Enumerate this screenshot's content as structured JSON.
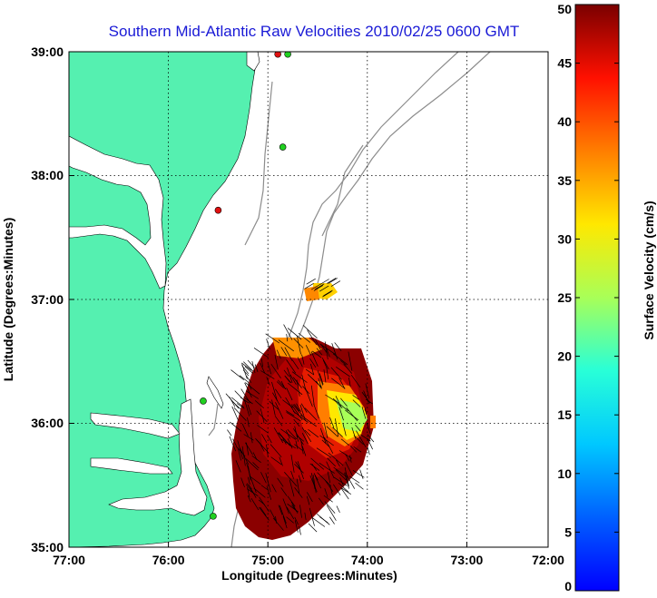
{
  "title": "Southern Mid-Atlantic Raw Velocities 2010/02/25 0600 GMT",
  "axes": {
    "xlabel": "Longitude (Degrees:Minutes)",
    "ylabel": "Latitude (Degrees:Minutes)",
    "x_ticks": [
      "77:00",
      "76:00",
      "75:00",
      "74:00",
      "73:00",
      "72:00"
    ],
    "y_ticks": [
      "39:00",
      "38:00",
      "37:00",
      "36:00",
      "35:00"
    ]
  },
  "colorbar": {
    "label": "Surface Velocity (cm/s)",
    "ticks": [
      "0",
      "5",
      "10",
      "15",
      "20",
      "25",
      "30",
      "35",
      "40",
      "45",
      "50"
    ],
    "min": 0,
    "max": 50
  },
  "colors": {
    "land": "#55f0b0",
    "title": "#1a1ad6",
    "isobath": "#8c8c8c",
    "station_active": "#20d020",
    "station_inactive": "#e01010"
  },
  "stations": [
    {
      "lon": -74.9,
      "lat": 38.98,
      "status": "inactive"
    },
    {
      "lon": -74.8,
      "lat": 38.98,
      "status": "active"
    },
    {
      "lon": -74.85,
      "lat": 38.23,
      "status": "active"
    },
    {
      "lon": -75.5,
      "lat": 37.72,
      "status": "inactive"
    },
    {
      "lon": -75.65,
      "lat": 36.18,
      "status": "active"
    },
    {
      "lon": -75.55,
      "lat": 35.25,
      "status": "active"
    }
  ]
}
